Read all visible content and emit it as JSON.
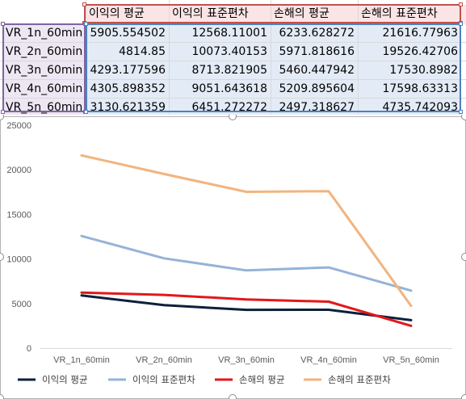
{
  "sheet": {
    "headers": [
      "이익의 평균",
      "이익의 표준편차",
      "손해의 평균",
      "손해의 표준편차"
    ],
    "rows": [
      {
        "label": "VR_1n_60min",
        "values": [
          "5905.554502",
          "12568.11001",
          "6233.628272",
          "21616.77963"
        ]
      },
      {
        "label": "VR_2n_60min",
        "values": [
          "4814.85",
          "10073.40153",
          "5971.818616",
          "19526.42706"
        ]
      },
      {
        "label": "VR_3n_60min",
        "values": [
          "4293.177596",
          "8713.821905",
          "5460.447942",
          "17530.8982"
        ]
      },
      {
        "label": "VR_4n_60min",
        "values": [
          "4305.898352",
          "9051.643618",
          "5209.895604",
          "17598.63313"
        ]
      },
      {
        "label": "VR_5n_60min",
        "values": [
          "3130.621359",
          "6451.272272",
          "2497.318627",
          "4735.742093"
        ]
      }
    ]
  },
  "colors": {
    "header_fill": "#fbe4e6",
    "row_label_fill": "#ede6f3",
    "value_fill": "#e3ebf6",
    "header_border": "#c0504d",
    "label_border": "#8064a2",
    "value_border": "#4f81bd"
  },
  "chart_data": {
    "type": "line",
    "categories": [
      "VR_1n_60min",
      "VR_2n_60min",
      "VR_3n_60min",
      "VR_4n_60min",
      "VR_5n_60min"
    ],
    "series": [
      {
        "name": "이익의 평균",
        "color": "#0d1f3c",
        "values": [
          5905.554502,
          4814.85,
          4293.177596,
          4305.898352,
          3130.621359
        ]
      },
      {
        "name": "이익의 표준편차",
        "color": "#95b3d7",
        "values": [
          12568.11001,
          10073.40153,
          8713.821905,
          9051.643618,
          6451.272272
        ]
      },
      {
        "name": "손해의 평균",
        "color": "#e3171a",
        "values": [
          6233.628272,
          5971.818616,
          5460.447942,
          5209.895604,
          2497.318627
        ]
      },
      {
        "name": "손해의 표준편차",
        "color": "#f2b47f",
        "values": [
          21616.77963,
          19526.42706,
          17530.8982,
          17598.63313,
          4735.742093
        ]
      }
    ],
    "yticks": [
      0,
      5000,
      10000,
      15000,
      20000,
      25000
    ],
    "ylim": [
      0,
      25000
    ],
    "grid": false,
    "legend_position": "bottom"
  }
}
